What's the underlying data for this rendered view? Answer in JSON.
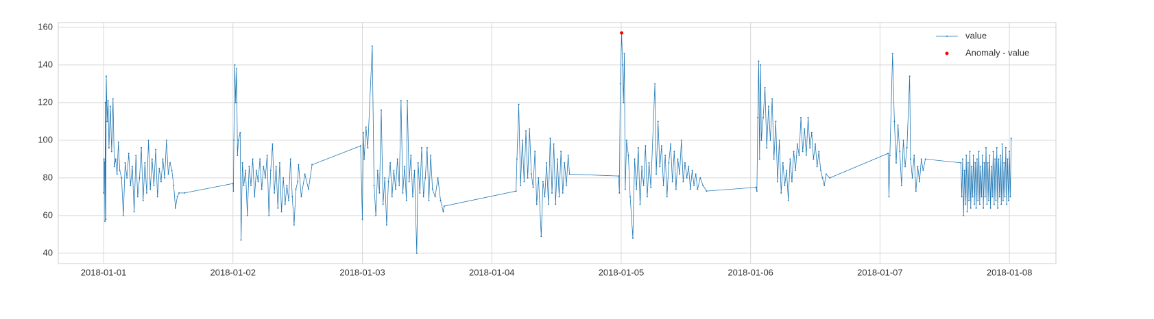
{
  "chart_data": {
    "type": "line",
    "xlim": [
      "2017-12-31T15:36",
      "2018-01-08T08:38"
    ],
    "xticks": [
      "2018-01-01",
      "2018-01-02",
      "2018-01-03",
      "2018-01-04",
      "2018-01-05",
      "2018-01-06",
      "2018-01-07",
      "2018-01-08"
    ],
    "ylim": [
      34.5,
      162.5
    ],
    "yticks": [
      40,
      60,
      80,
      100,
      120,
      140,
      160
    ],
    "grid": true,
    "legend": "upper right",
    "series": [
      {
        "name": "value",
        "color": "#1f77b4",
        "x": [
          "2018-01-01T00:00",
          "2018-01-01T00:05",
          "2018-01-01T00:10",
          "2018-01-01T00:15",
          "2018-01-01T00:20",
          "2018-01-01T00:25",
          "2018-01-01T00:30",
          "2018-01-01T00:40",
          "2018-01-01T00:50",
          "2018-01-01T01:00",
          "2018-01-01T01:15",
          "2018-01-01T01:30",
          "2018-01-01T01:45",
          "2018-01-01T02:00",
          "2018-01-01T02:15",
          "2018-01-01T02:30",
          "2018-01-01T02:45",
          "2018-01-01T03:00",
          "2018-01-01T03:20",
          "2018-01-01T03:40",
          "2018-01-01T04:00",
          "2018-01-01T04:20",
          "2018-01-01T04:40",
          "2018-01-01T05:00",
          "2018-01-01T05:20",
          "2018-01-01T05:40",
          "2018-01-01T06:00",
          "2018-01-01T06:20",
          "2018-01-01T06:40",
          "2018-01-01T07:00",
          "2018-01-01T07:20",
          "2018-01-01T07:40",
          "2018-01-01T08:00",
          "2018-01-01T08:20",
          "2018-01-01T08:40",
          "2018-01-01T09:00",
          "2018-01-01T09:20",
          "2018-01-01T09:40",
          "2018-01-01T10:00",
          "2018-01-01T10:20",
          "2018-01-01T10:40",
          "2018-01-01T11:00",
          "2018-01-01T11:20",
          "2018-01-01T11:40",
          "2018-01-01T12:00",
          "2018-01-01T12:20",
          "2018-01-01T12:40",
          "2018-01-01T13:00",
          "2018-01-01T13:20",
          "2018-01-01T13:40",
          "2018-01-01T14:00",
          "2018-01-01T15:00",
          "2018-01-02T00:00",
          "2018-01-02T00:05",
          "2018-01-02T00:10",
          "2018-01-02T00:20",
          "2018-01-02T00:30",
          "2018-01-02T00:40",
          "2018-01-02T00:50",
          "2018-01-02T01:00",
          "2018-01-02T01:20",
          "2018-01-02T01:30",
          "2018-01-02T01:45",
          "2018-01-02T02:00",
          "2018-01-02T02:20",
          "2018-01-02T02:40",
          "2018-01-02T03:00",
          "2018-01-02T03:20",
          "2018-01-02T03:40",
          "2018-01-02T04:00",
          "2018-01-02T04:20",
          "2018-01-02T04:40",
          "2018-01-02T05:00",
          "2018-01-02T05:20",
          "2018-01-02T05:40",
          "2018-01-02T06:00",
          "2018-01-02T06:20",
          "2018-01-02T06:40",
          "2018-01-02T07:00",
          "2018-01-02T07:20",
          "2018-01-02T07:40",
          "2018-01-02T08:00",
          "2018-01-02T08:20",
          "2018-01-02T08:40",
          "2018-01-02T09:00",
          "2018-01-02T09:20",
          "2018-01-02T09:40",
          "2018-01-02T10:00",
          "2018-01-02T10:20",
          "2018-01-02T10:40",
          "2018-01-02T11:00",
          "2018-01-02T11:20",
          "2018-01-02T11:40",
          "2018-01-02T12:00",
          "2018-01-02T12:10",
          "2018-01-02T12:40",
          "2018-01-02T13:20",
          "2018-01-02T14:00",
          "2018-01-02T14:40",
          "2018-01-02T23:40",
          "2018-01-03T00:00",
          "2018-01-03T00:10",
          "2018-01-03T00:20",
          "2018-01-03T00:40",
          "2018-01-03T01:00",
          "2018-01-03T01:50",
          "2018-01-03T02:10",
          "2018-01-03T02:30",
          "2018-01-03T02:50",
          "2018-01-03T03:10",
          "2018-01-03T03:30",
          "2018-01-03T03:50",
          "2018-01-03T04:10",
          "2018-01-03T04:30",
          "2018-01-03T04:50",
          "2018-01-03T05:10",
          "2018-01-03T05:30",
          "2018-01-03T05:50",
          "2018-01-03T06:10",
          "2018-01-03T06:30",
          "2018-01-03T06:50",
          "2018-01-03T07:10",
          "2018-01-03T07:30",
          "2018-01-03T07:50",
          "2018-01-03T08:10",
          "2018-01-03T08:20",
          "2018-01-03T08:40",
          "2018-01-03T09:00",
          "2018-01-03T09:20",
          "2018-01-03T09:40",
          "2018-01-03T10:05",
          "2018-01-03T10:20",
          "2018-01-03T10:40",
          "2018-01-03T11:00",
          "2018-01-03T11:20",
          "2018-01-03T11:40",
          "2018-01-03T12:00",
          "2018-01-03T12:20",
          "2018-01-03T12:40",
          "2018-01-03T13:00",
          "2018-01-03T13:30",
          "2018-01-03T14:00",
          "2018-01-03T14:30",
          "2018-01-03T15:00",
          "2018-01-03T15:10",
          "2018-01-04T04:30",
          "2018-01-04T04:40",
          "2018-01-04T05:00",
          "2018-01-04T05:20",
          "2018-01-04T05:40",
          "2018-01-04T06:00",
          "2018-01-04T06:20",
          "2018-01-04T06:40",
          "2018-01-04T07:00",
          "2018-01-04T07:20",
          "2018-01-04T07:40",
          "2018-01-04T08:00",
          "2018-01-04T08:20",
          "2018-01-04T08:40",
          "2018-01-04T09:10",
          "2018-01-04T09:30",
          "2018-01-04T09:50",
          "2018-01-04T10:10",
          "2018-01-04T10:30",
          "2018-01-04T10:50",
          "2018-01-04T11:10",
          "2018-01-04T11:30",
          "2018-01-04T11:50",
          "2018-01-04T12:10",
          "2018-01-04T12:30",
          "2018-01-04T12:50",
          "2018-01-04T13:10",
          "2018-01-04T13:30",
          "2018-01-04T13:50",
          "2018-01-04T14:10",
          "2018-01-04T14:25",
          "2018-01-04T23:30",
          "2018-01-04T23:40",
          "2018-01-04T23:50",
          "2018-01-05T00:05",
          "2018-01-05T00:15",
          "2018-01-05T00:25",
          "2018-01-05T00:35",
          "2018-01-05T00:45",
          "2018-01-05T01:00",
          "2018-01-05T01:20",
          "2018-01-05T01:40",
          "2018-01-05T02:10",
          "2018-01-05T02:30",
          "2018-01-05T02:50",
          "2018-01-05T03:10",
          "2018-01-05T03:30",
          "2018-01-05T03:50",
          "2018-01-05T04:10",
          "2018-01-05T04:30",
          "2018-01-05T04:50",
          "2018-01-05T05:10",
          "2018-01-05T05:30",
          "2018-01-05T06:15",
          "2018-01-05T06:30",
          "2018-01-05T06:50",
          "2018-01-05T07:10",
          "2018-01-05T07:30",
          "2018-01-05T07:50",
          "2018-01-05T08:10",
          "2018-01-05T08:30",
          "2018-01-05T08:50",
          "2018-01-05T09:10",
          "2018-01-05T09:30",
          "2018-01-05T09:50",
          "2018-01-05T10:10",
          "2018-01-05T10:30",
          "2018-01-05T10:50",
          "2018-01-05T11:10",
          "2018-01-05T11:30",
          "2018-01-05T11:50",
          "2018-01-05T12:10",
          "2018-01-05T12:30",
          "2018-01-05T12:50",
          "2018-01-05T13:10",
          "2018-01-05T13:30",
          "2018-01-05T13:50",
          "2018-01-05T14:10",
          "2018-01-05T14:40",
          "2018-01-05T15:10",
          "2018-01-05T15:50",
          "2018-01-06T01:00",
          "2018-01-06T01:10",
          "2018-01-06T01:20",
          "2018-01-06T01:30",
          "2018-01-06T01:40",
          "2018-01-06T01:50",
          "2018-01-06T02:00",
          "2018-01-06T02:20",
          "2018-01-06T02:40",
          "2018-01-06T03:00",
          "2018-01-06T03:20",
          "2018-01-06T03:40",
          "2018-01-06T04:00",
          "2018-01-06T04:20",
          "2018-01-06T04:40",
          "2018-01-06T05:00",
          "2018-01-06T05:20",
          "2018-01-06T05:40",
          "2018-01-06T06:00",
          "2018-01-06T06:20",
          "2018-01-06T06:40",
          "2018-01-06T07:00",
          "2018-01-06T07:20",
          "2018-01-06T07:40",
          "2018-01-06T08:00",
          "2018-01-06T08:20",
          "2018-01-06T08:40",
          "2018-01-06T09:00",
          "2018-01-06T09:20",
          "2018-01-06T09:40",
          "2018-01-06T10:00",
          "2018-01-06T10:20",
          "2018-01-06T10:40",
          "2018-01-06T11:00",
          "2018-01-06T11:20",
          "2018-01-06T11:40",
          "2018-01-06T12:00",
          "2018-01-06T12:20",
          "2018-01-06T12:40",
          "2018-01-06T13:00",
          "2018-01-06T13:20",
          "2018-01-06T13:40",
          "2018-01-06T14:00",
          "2018-01-06T14:40",
          "2018-01-07T01:30",
          "2018-01-07T01:40",
          "2018-01-07T01:50",
          "2018-01-07T02:20",
          "2018-01-07T02:40",
          "2018-01-07T03:00",
          "2018-01-07T03:20",
          "2018-01-07T03:40",
          "2018-01-07T04:00",
          "2018-01-07T04:20",
          "2018-01-07T04:40",
          "2018-01-07T05:00",
          "2018-01-07T05:30",
          "2018-01-07T05:40",
          "2018-01-07T06:00",
          "2018-01-07T06:20",
          "2018-01-07T06:40",
          "2018-01-07T07:00",
          "2018-01-07T07:20",
          "2018-01-07T07:40",
          "2018-01-07T08:00",
          "2018-01-07T08:25",
          "2018-01-07T15:00",
          "2018-01-07T15:10",
          "2018-01-07T15:20",
          "2018-01-07T15:30",
          "2018-01-07T15:40",
          "2018-01-07T15:50",
          "2018-01-07T16:00",
          "2018-01-07T16:10",
          "2018-01-07T16:20",
          "2018-01-07T16:30",
          "2018-01-07T16:40",
          "2018-01-07T16:50",
          "2018-01-07T17:00",
          "2018-01-07T17:10",
          "2018-01-07T17:20",
          "2018-01-07T17:30",
          "2018-01-07T17:40",
          "2018-01-07T17:50",
          "2018-01-07T18:00",
          "2018-01-07T18:10",
          "2018-01-07T18:20",
          "2018-01-07T18:30",
          "2018-01-07T18:40",
          "2018-01-07T18:50",
          "2018-01-07T19:00",
          "2018-01-07T19:10",
          "2018-01-07T19:20",
          "2018-01-07T19:30",
          "2018-01-07T19:40",
          "2018-01-07T19:50",
          "2018-01-07T20:00",
          "2018-01-07T20:10",
          "2018-01-07T20:20",
          "2018-01-07T20:30",
          "2018-01-07T20:40",
          "2018-01-07T20:50",
          "2018-01-07T21:00",
          "2018-01-07T21:10",
          "2018-01-07T21:20",
          "2018-01-07T21:30",
          "2018-01-07T21:40",
          "2018-01-07T21:50",
          "2018-01-07T22:00",
          "2018-01-07T22:10",
          "2018-01-07T22:20",
          "2018-01-07T22:30",
          "2018-01-07T22:40",
          "2018-01-07T22:50",
          "2018-01-07T23:00",
          "2018-01-07T23:10",
          "2018-01-07T23:20",
          "2018-01-07T23:30",
          "2018-01-07T23:40",
          "2018-01-07T23:50",
          "2018-01-08T00:00",
          "2018-01-08T00:10",
          "2018-01-08T00:20"
        ],
        "values": [
          72,
          90,
          88,
          57,
          120,
          58,
          134,
          110,
          121,
          96,
          118,
          94,
          122,
          86,
          90,
          82,
          99,
          84,
          80,
          60,
          88,
          80,
          93,
          76,
          86,
          62,
          92,
          70,
          80,
          96,
          68,
          88,
          72,
          100,
          74,
          90,
          76,
          95,
          70,
          85,
          78,
          90,
          80,
          100,
          82,
          88,
          84,
          76,
          64,
          70,
          72,
          72,
          77,
          73,
          100,
          140,
          120,
          138,
          92,
          100,
          104,
          47,
          88,
          76,
          84,
          60,
          86,
          76,
          90,
          70,
          84,
          78,
          90,
          74,
          86,
          80,
          92,
          60,
          84,
          98,
          72,
          86,
          64,
          88,
          62,
          80,
          66,
          76,
          68,
          90,
          70,
          55,
          74,
          78,
          87,
          70,
          82,
          74,
          87,
          97,
          58,
          104,
          90,
          107,
          96,
          150,
          76,
          60,
          84,
          72,
          116,
          66,
          80,
          55,
          78,
          88,
          70,
          84,
          74,
          90,
          76,
          121,
          72,
          86,
          68,
          121,
          78,
          92,
          70,
          84,
          40,
          88,
          72,
          96,
          70,
          80,
          96,
          68,
          92,
          74,
          70,
          80,
          68,
          62,
          65,
          73,
          90,
          119,
          76,
          100,
          78,
          105,
          80,
          106,
          82,
          75,
          94,
          66,
          80,
          49,
          78,
          70,
          88,
          66,
          101,
          72,
          98,
          66,
          90,
          70,
          94,
          72,
          88,
          76,
          92,
          82,
          81,
          72,
          130,
          157,
          140,
          120,
          146,
          74,
          100,
          92,
          70,
          48,
          90,
          74,
          96,
          66,
          86,
          76,
          97,
          70,
          88,
          75,
          130,
          82,
          110,
          86,
          97,
          76,
          92,
          70,
          88,
          98,
          78,
          94,
          74,
          90,
          82,
          100,
          78,
          88,
          80,
          86,
          74,
          84,
          76,
          82,
          74,
          80,
          76,
          73,
          75,
          73,
          112,
          142,
          90,
          140,
          100,
          112,
          128,
          96,
          118,
          100,
          122,
          90,
          110,
          78,
          100,
          72,
          88,
          76,
          84,
          68,
          90,
          78,
          94,
          84,
          98,
          92,
          112,
          94,
          106,
          92,
          112,
          96,
          104,
          90,
          98,
          86,
          94,
          84,
          80,
          76,
          82,
          80,
          93,
          70,
          92,
          146,
          110,
          88,
          108,
          94,
          76,
          100,
          86,
          96,
          134,
          90,
          80,
          92,
          73,
          86,
          78,
          90,
          84,
          90,
          88,
          70,
          90,
          60,
          84,
          66,
          92,
          62,
          88,
          68,
          94,
          64,
          86,
          70,
          92,
          66,
          88,
          64,
          90,
          68,
          94,
          66,
          86,
          70,
          92,
          64,
          88,
          70,
          96,
          66,
          88,
          68,
          92,
          64,
          86,
          70,
          94,
          66,
          90,
          68,
          96,
          64,
          90,
          70,
          92,
          66,
          98,
          68,
          88,
          70,
          96,
          66,
          90,
          68,
          94,
          70,
          101
        ]
      },
      {
        "name": "Anomaly - value",
        "type": "scatter",
        "color": "#ff0000",
        "x": [
          "2018-01-05T00:05"
        ],
        "values": [
          157
        ]
      }
    ]
  }
}
